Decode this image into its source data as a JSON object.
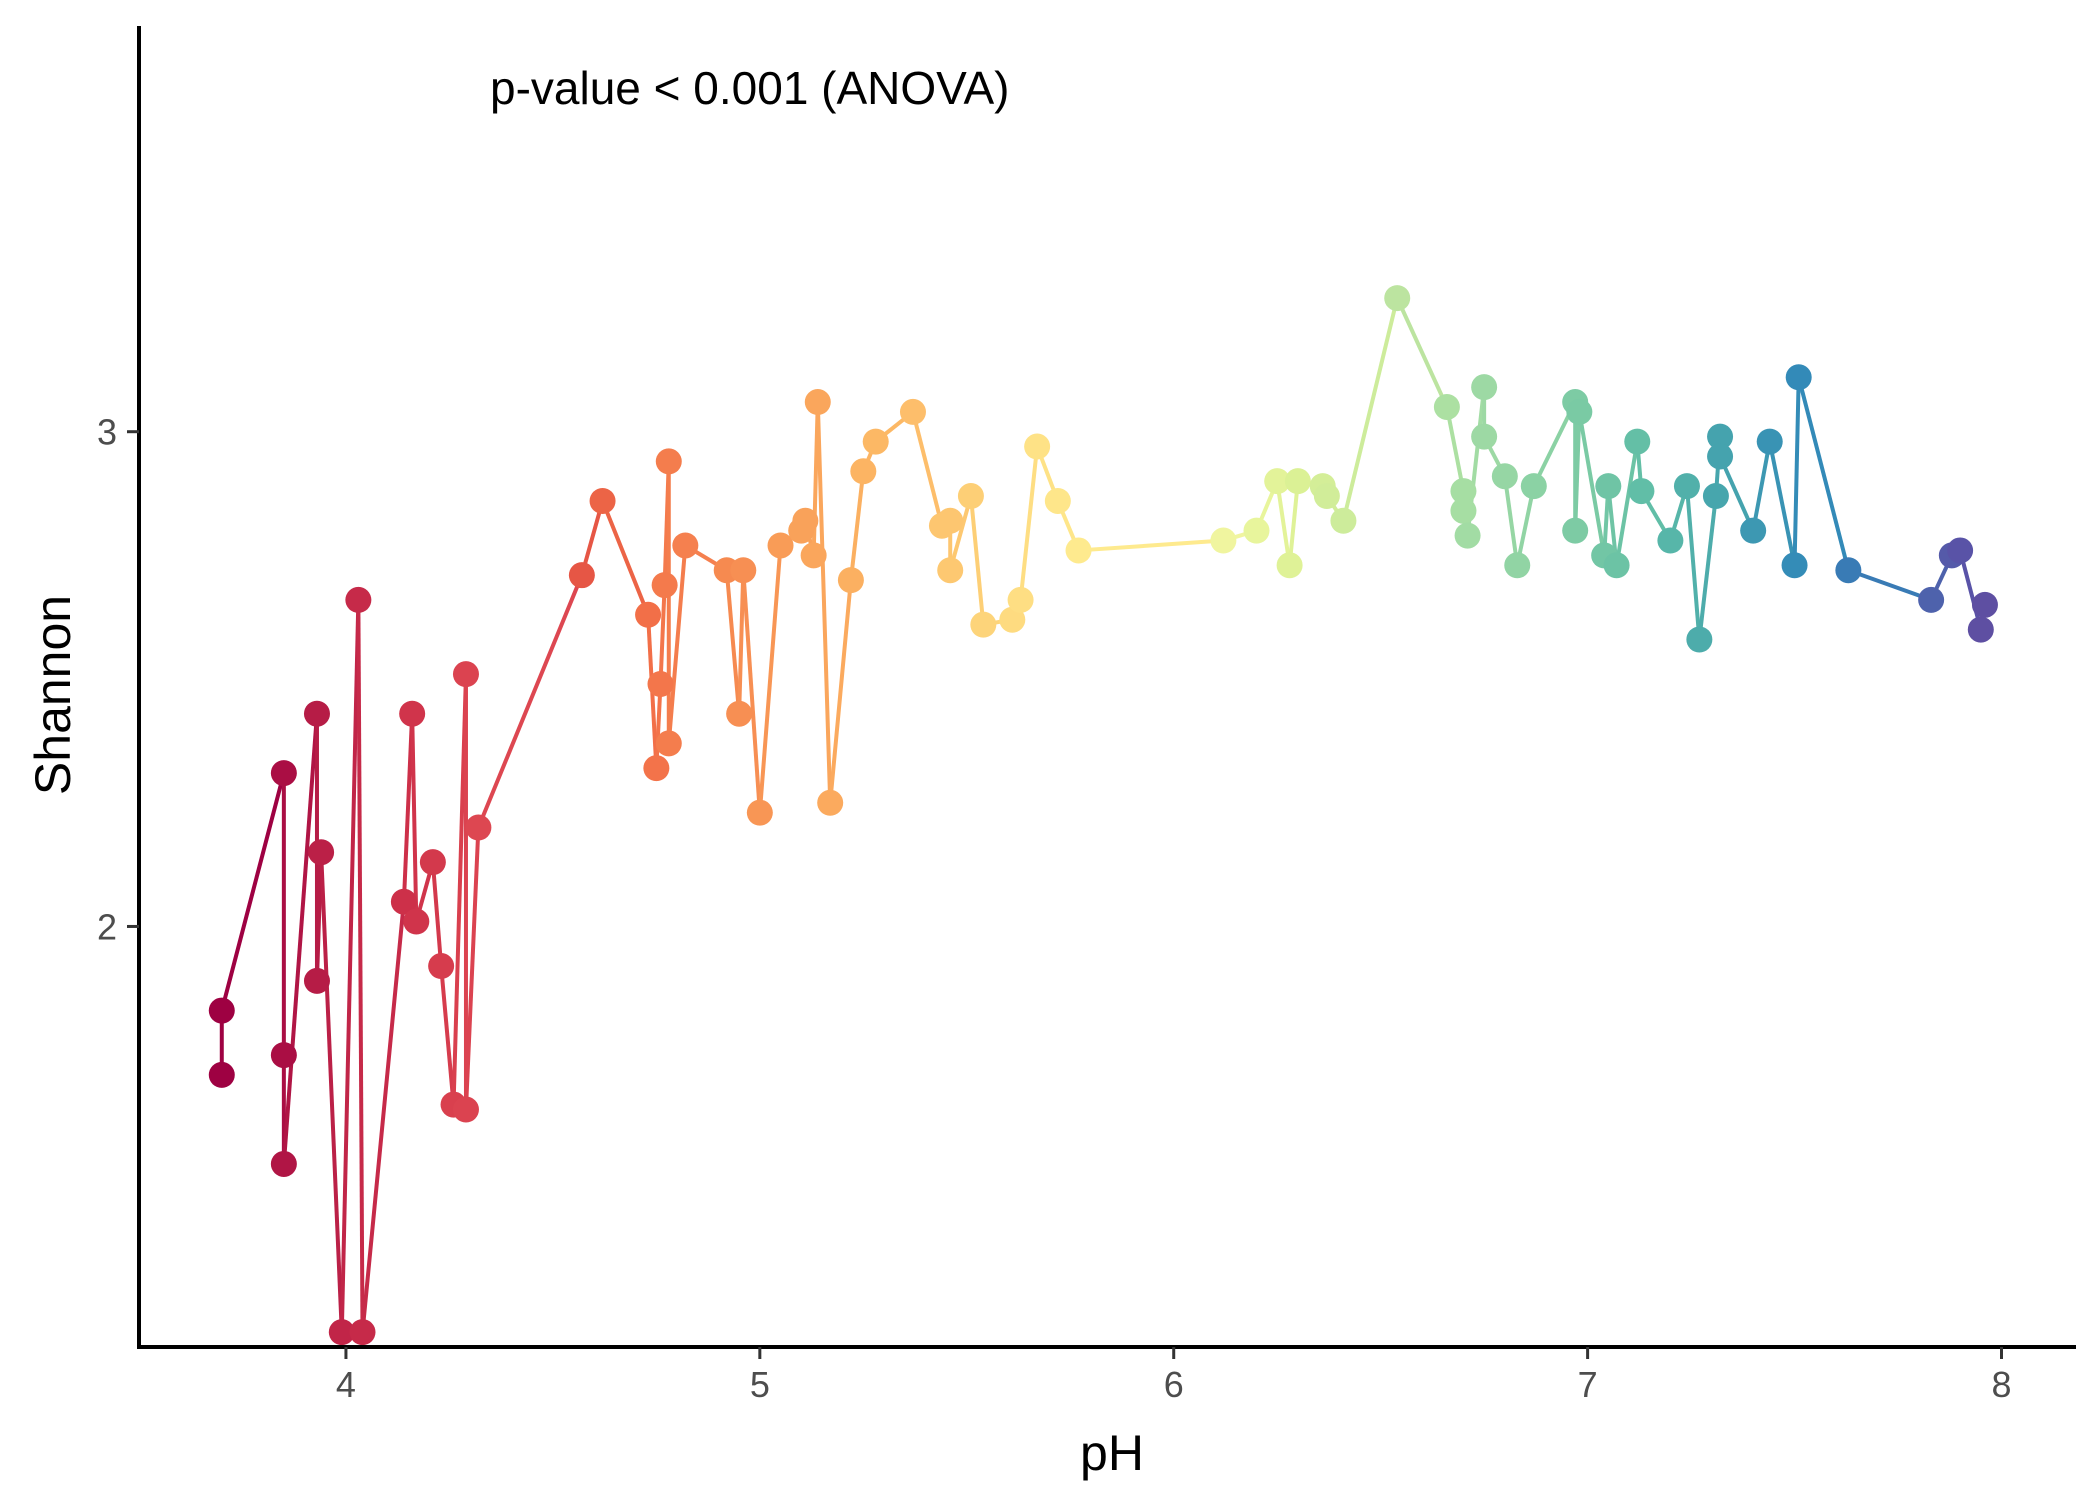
{
  "chart_data": {
    "type": "scatter",
    "annotation": "p-value < 0.001 (ANOVA)",
    "xlabel": "pH",
    "ylabel": "Shannon",
    "xlim": [
      3.5,
      8.18
    ],
    "ylim": [
      1.15,
      3.82
    ],
    "xticks": [
      4,
      5,
      6,
      7,
      8
    ],
    "yticks": [
      2,
      3
    ],
    "grid": false,
    "legend": "none",
    "points": [
      {
        "x": 3.7,
        "y": 1.7,
        "color": "#9e0142"
      },
      {
        "x": 3.7,
        "y": 1.83,
        "color": "#9e0142"
      },
      {
        "x": 3.85,
        "y": 2.31,
        "color": "#aa0e44"
      },
      {
        "x": 3.85,
        "y": 1.74,
        "color": "#aa0e44"
      },
      {
        "x": 3.85,
        "y": 1.52,
        "color": "#b01545"
      },
      {
        "x": 3.93,
        "y": 2.43,
        "color": "#b61c46"
      },
      {
        "x": 3.93,
        "y": 1.89,
        "color": "#b61c46"
      },
      {
        "x": 3.94,
        "y": 2.15,
        "color": "#bb2047"
      },
      {
        "x": 3.99,
        "y": 1.18,
        "color": "#c12548"
      },
      {
        "x": 4.03,
        "y": 2.66,
        "color": "#c62a49"
      },
      {
        "x": 4.04,
        "y": 1.18,
        "color": "#c62a49"
      },
      {
        "x": 4.14,
        "y": 2.05,
        "color": "#cd3049"
      },
      {
        "x": 4.16,
        "y": 2.43,
        "color": "#d0344b"
      },
      {
        "x": 4.17,
        "y": 2.01,
        "color": "#d0344b"
      },
      {
        "x": 4.21,
        "y": 2.13,
        "color": "#d3394c"
      },
      {
        "x": 4.23,
        "y": 1.92,
        "color": "#d63c4d"
      },
      {
        "x": 4.26,
        "y": 1.64,
        "color": "#d9404e"
      },
      {
        "x": 4.29,
        "y": 2.51,
        "color": "#db4350"
      },
      {
        "x": 4.29,
        "y": 1.63,
        "color": "#db4350"
      },
      {
        "x": 4.32,
        "y": 2.2,
        "color": "#dd4751"
      },
      {
        "x": 4.57,
        "y": 2.71,
        "color": "#e65645"
      },
      {
        "x": 4.62,
        "y": 2.86,
        "color": "#ec6446"
      },
      {
        "x": 4.73,
        "y": 2.63,
        "color": "#f26f48"
      },
      {
        "x": 4.75,
        "y": 2.32,
        "color": "#f3734a"
      },
      {
        "x": 4.76,
        "y": 2.49,
        "color": "#f3764b"
      },
      {
        "x": 4.77,
        "y": 2.69,
        "color": "#f47a4c"
      },
      {
        "x": 4.78,
        "y": 2.94,
        "color": "#f47d4d"
      },
      {
        "x": 4.78,
        "y": 2.37,
        "color": "#f47d4d"
      },
      {
        "x": 4.82,
        "y": 2.77,
        "color": "#f5804f"
      },
      {
        "x": 4.92,
        "y": 2.72,
        "color": "#f68a50"
      },
      {
        "x": 4.95,
        "y": 2.43,
        "color": "#f78f53"
      },
      {
        "x": 4.96,
        "y": 2.72,
        "color": "#f78f53"
      },
      {
        "x": 5.0,
        "y": 2.23,
        "color": "#f89655"
      },
      {
        "x": 5.05,
        "y": 2.77,
        "color": "#f99c57"
      },
      {
        "x": 5.1,
        "y": 2.8,
        "color": "#f9a25a"
      },
      {
        "x": 5.11,
        "y": 2.82,
        "color": "#f9a25a"
      },
      {
        "x": 5.13,
        "y": 2.75,
        "color": "#faa65c"
      },
      {
        "x": 5.14,
        "y": 3.06,
        "color": "#faa65c"
      },
      {
        "x": 5.17,
        "y": 2.25,
        "color": "#fbaa5e"
      },
      {
        "x": 5.22,
        "y": 2.7,
        "color": "#fbb061"
      },
      {
        "x": 5.25,
        "y": 2.92,
        "color": "#fcb463"
      },
      {
        "x": 5.28,
        "y": 2.98,
        "color": "#fcb865"
      },
      {
        "x": 5.37,
        "y": 3.04,
        "color": "#fdbe6b"
      },
      {
        "x": 5.44,
        "y": 2.81,
        "color": "#fdc670"
      },
      {
        "x": 5.46,
        "y": 2.82,
        "color": "#fdc670"
      },
      {
        "x": 5.46,
        "y": 2.72,
        "color": "#fdc871"
      },
      {
        "x": 5.51,
        "y": 2.87,
        "color": "#fdcf76"
      },
      {
        "x": 5.54,
        "y": 2.61,
        "color": "#fdd47a"
      },
      {
        "x": 5.61,
        "y": 2.62,
        "color": "#fedb80"
      },
      {
        "x": 5.63,
        "y": 2.66,
        "color": "#fede83"
      },
      {
        "x": 5.67,
        "y": 2.97,
        "color": "#fee286"
      },
      {
        "x": 5.72,
        "y": 2.86,
        "color": "#fee68a"
      },
      {
        "x": 5.77,
        "y": 2.76,
        "color": "#feea8e"
      },
      {
        "x": 6.12,
        "y": 2.78,
        "color": "#f0f59f"
      },
      {
        "x": 6.2,
        "y": 2.8,
        "color": "#e8f59c"
      },
      {
        "x": 6.25,
        "y": 2.9,
        "color": "#e3f399"
      },
      {
        "x": 6.28,
        "y": 2.73,
        "color": "#dff297"
      },
      {
        "x": 6.3,
        "y": 2.9,
        "color": "#dbf195"
      },
      {
        "x": 6.36,
        "y": 2.89,
        "color": "#d4ee98"
      },
      {
        "x": 6.37,
        "y": 2.87,
        "color": "#d1ed99"
      },
      {
        "x": 6.41,
        "y": 2.82,
        "color": "#cdec9b"
      },
      {
        "x": 6.54,
        "y": 3.27,
        "color": "#bce4a0"
      },
      {
        "x": 6.66,
        "y": 3.05,
        "color": "#ace0a2"
      },
      {
        "x": 6.7,
        "y": 2.88,
        "color": "#a6dea3"
      },
      {
        "x": 6.7,
        "y": 2.84,
        "color": "#a6dea3"
      },
      {
        "x": 6.71,
        "y": 2.79,
        "color": "#a2dca4"
      },
      {
        "x": 6.75,
        "y": 3.09,
        "color": "#9dd9a4"
      },
      {
        "x": 6.75,
        "y": 2.99,
        "color": "#9dd9a4"
      },
      {
        "x": 6.8,
        "y": 2.91,
        "color": "#96d6a4"
      },
      {
        "x": 6.83,
        "y": 2.73,
        "color": "#91d4a4"
      },
      {
        "x": 6.87,
        "y": 2.89,
        "color": "#8bd2a4"
      },
      {
        "x": 6.97,
        "y": 3.06,
        "color": "#7dcba4"
      },
      {
        "x": 6.97,
        "y": 2.8,
        "color": "#7dcba4"
      },
      {
        "x": 6.98,
        "y": 3.04,
        "color": "#7acaa4"
      },
      {
        "x": 7.04,
        "y": 2.75,
        "color": "#72c6a5"
      },
      {
        "x": 7.05,
        "y": 2.89,
        "color": "#6fc4a5"
      },
      {
        "x": 7.07,
        "y": 2.73,
        "color": "#6cc3a5"
      },
      {
        "x": 7.12,
        "y": 2.98,
        "color": "#64bfa6"
      },
      {
        "x": 7.13,
        "y": 2.88,
        "color": "#61bea7"
      },
      {
        "x": 7.2,
        "y": 2.78,
        "color": "#57b6a9"
      },
      {
        "x": 7.24,
        "y": 2.89,
        "color": "#51b0aa"
      },
      {
        "x": 7.27,
        "y": 2.58,
        "color": "#4dacab"
      },
      {
        "x": 7.31,
        "y": 2.87,
        "color": "#47a6ad"
      },
      {
        "x": 7.32,
        "y": 2.99,
        "color": "#45a3ae"
      },
      {
        "x": 7.32,
        "y": 2.95,
        "color": "#45a3ae"
      },
      {
        "x": 7.4,
        "y": 2.8,
        "color": "#3d98b2"
      },
      {
        "x": 7.44,
        "y": 2.98,
        "color": "#3993b4"
      },
      {
        "x": 7.5,
        "y": 2.73,
        "color": "#348cb7"
      },
      {
        "x": 7.51,
        "y": 3.11,
        "color": "#338ab8"
      },
      {
        "x": 7.63,
        "y": 2.72,
        "color": "#397bb5"
      },
      {
        "x": 7.83,
        "y": 2.66,
        "color": "#4e62ac"
      },
      {
        "x": 7.88,
        "y": 2.75,
        "color": "#555aa9"
      },
      {
        "x": 7.9,
        "y": 2.76,
        "color": "#5953a7"
      },
      {
        "x": 7.95,
        "y": 2.6,
        "color": "#5e4fa2"
      },
      {
        "x": 7.96,
        "y": 2.65,
        "color": "#5e4fa2"
      }
    ]
  }
}
